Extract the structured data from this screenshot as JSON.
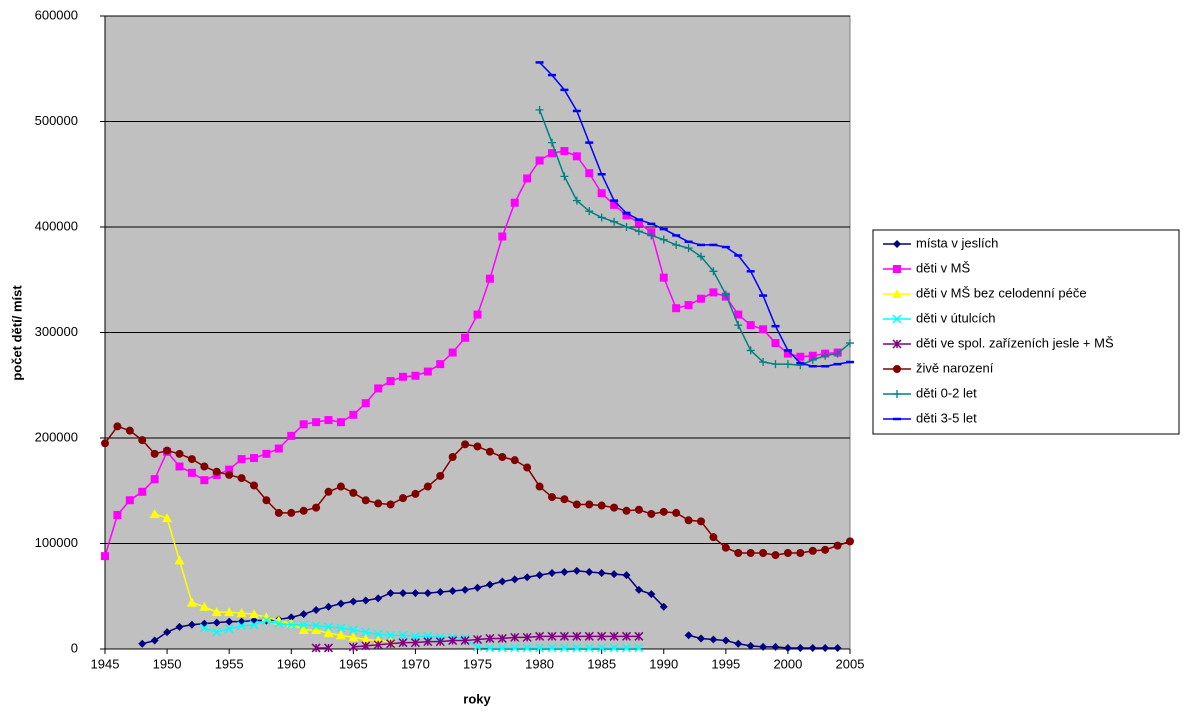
{
  "chart_data": {
    "type": "line",
    "x_label": "roky",
    "y_label": "počet dětí/ míst",
    "xlim": [
      1945,
      2005
    ],
    "ylim": [
      0,
      600000
    ],
    "xticks": [
      1945,
      1950,
      1955,
      1960,
      1965,
      1970,
      1975,
      1980,
      1985,
      1990,
      1995,
      2000,
      2005
    ],
    "yticks": [
      0,
      100000,
      200000,
      300000,
      400000,
      500000,
      600000
    ],
    "grid": true,
    "legend": "right",
    "background": "#c0c0c0",
    "x": [
      1945,
      1946,
      1947,
      1948,
      1949,
      1950,
      1951,
      1952,
      1953,
      1954,
      1955,
      1956,
      1957,
      1958,
      1959,
      1960,
      1961,
      1962,
      1963,
      1964,
      1965,
      1966,
      1967,
      1968,
      1969,
      1970,
      1971,
      1972,
      1973,
      1974,
      1975,
      1976,
      1977,
      1978,
      1979,
      1980,
      1981,
      1982,
      1983,
      1984,
      1985,
      1986,
      1987,
      1988,
      1989,
      1990,
      1991,
      1992,
      1993,
      1994,
      1995,
      1996,
      1997,
      1998,
      1999,
      2000,
      2001,
      2002,
      2003,
      2004,
      2005
    ],
    "series": [
      {
        "name": "místa v jeslích",
        "color": "#000080",
        "marker": "diamond",
        "values": [
          null,
          null,
          null,
          5000,
          8000,
          16000,
          21000,
          23000,
          24000,
          25000,
          26000,
          26000,
          27000,
          27000,
          28000,
          30000,
          33000,
          37000,
          40000,
          43000,
          45000,
          46000,
          48000,
          53000,
          53000,
          53000,
          53000,
          54000,
          55000,
          56000,
          58000,
          61000,
          64000,
          66000,
          68000,
          70000,
          72000,
          73000,
          74000,
          73000,
          72000,
          71000,
          70000,
          56000,
          52000,
          40000,
          null,
          13000,
          10000,
          9000,
          8000,
          5000,
          3000,
          2000,
          2000,
          1000,
          1000,
          1000,
          1000,
          1000,
          null
        ]
      },
      {
        "name": "děti v MŠ",
        "color": "#ff00ff",
        "marker": "square",
        "values": [
          88000,
          127000,
          141000,
          149000,
          161000,
          187000,
          173000,
          167000,
          160000,
          165000,
          170000,
          180000,
          181000,
          185000,
          190000,
          202000,
          213000,
          215000,
          217000,
          215000,
          222000,
          233000,
          247000,
          254000,
          258000,
          259000,
          263000,
          270000,
          281000,
          295000,
          317000,
          351000,
          391000,
          423000,
          446000,
          463000,
          470000,
          472000,
          467000,
          451000,
          432000,
          421000,
          411000,
          404000,
          395000,
          352000,
          323000,
          326000,
          332000,
          338000,
          334000,
          317000,
          307000,
          303000,
          290000,
          280000,
          277000,
          278000,
          280000,
          281000,
          null
        ]
      },
      {
        "name": "děti v MŠ bez celodenní péče",
        "color": "#ffff00",
        "marker": "triangle",
        "values": [
          null,
          null,
          null,
          null,
          128000,
          124000,
          84000,
          44000,
          40000,
          35000,
          35000,
          34000,
          33000,
          30000,
          27000,
          24000,
          18000,
          18000,
          15000,
          13000,
          11000,
          9000,
          8000,
          7000,
          null,
          null,
          null,
          null,
          null,
          null,
          null,
          null,
          null,
          null,
          null,
          null,
          null,
          null,
          null,
          null,
          null,
          null,
          null,
          null,
          null,
          null,
          null,
          null,
          null,
          null,
          null,
          null,
          null,
          null,
          null,
          null,
          null,
          null,
          null,
          null,
          null
        ]
      },
      {
        "name": "děti v útulcích",
        "color": "#00ffff",
        "marker": "x",
        "values": [
          null,
          null,
          null,
          null,
          null,
          null,
          null,
          null,
          20000,
          16000,
          19000,
          22000,
          23000,
          27000,
          24000,
          23000,
          23000,
          22000,
          21000,
          20000,
          18000,
          16000,
          14000,
          13000,
          13000,
          12000,
          12000,
          11000,
          11000,
          10000,
          2000,
          1000,
          1000,
          1000,
          1000,
          1000,
          1000,
          1000,
          1000,
          1000,
          1000,
          1000,
          1000,
          1000,
          null,
          null,
          null,
          null,
          null,
          null,
          null,
          null,
          null,
          null,
          null,
          null,
          null,
          null,
          null,
          null,
          null
        ]
      },
      {
        "name": "děti ve spol. zařízeních jesle + MŠ",
        "color": "#800080",
        "marker": "star",
        "values": [
          null,
          null,
          null,
          null,
          null,
          null,
          null,
          null,
          null,
          null,
          null,
          null,
          null,
          null,
          null,
          null,
          null,
          1000,
          1000,
          null,
          2000,
          3000,
          4000,
          5000,
          6000,
          6000,
          7000,
          7000,
          8000,
          8000,
          9000,
          10000,
          10000,
          11000,
          11000,
          12000,
          12000,
          12000,
          12000,
          12000,
          12000,
          12000,
          12000,
          12000,
          null,
          null,
          null,
          null,
          null,
          null,
          null,
          null,
          null,
          null,
          null,
          null,
          null,
          null,
          null,
          null,
          null
        ]
      },
      {
        "name": "živě narození",
        "color": "#800000",
        "marker": "circle",
        "values": [
          195000,
          211000,
          207000,
          198000,
          185000,
          188000,
          185000,
          180000,
          173000,
          168000,
          165000,
          162000,
          155000,
          141000,
          129000,
          129000,
          131000,
          134000,
          149000,
          154000,
          148000,
          141000,
          138000,
          137000,
          143000,
          147000,
          154000,
          164000,
          182000,
          194000,
          192000,
          187000,
          182000,
          179000,
          172000,
          154000,
          144000,
          142000,
          137000,
          137000,
          136000,
          134000,
          131000,
          132000,
          128000,
          130000,
          129000,
          122000,
          121000,
          106000,
          96000,
          91000,
          91000,
          91000,
          89000,
          91000,
          91000,
          93000,
          94000,
          98000,
          102000
        ]
      },
      {
        "name": "děti 0-2 let",
        "color": "#008080",
        "marker": "plus",
        "values": [
          null,
          null,
          null,
          null,
          null,
          null,
          null,
          null,
          null,
          null,
          null,
          null,
          null,
          null,
          null,
          null,
          null,
          null,
          null,
          null,
          null,
          null,
          null,
          null,
          null,
          null,
          null,
          null,
          null,
          null,
          null,
          null,
          null,
          null,
          null,
          511000,
          480000,
          448000,
          425000,
          415000,
          409000,
          405000,
          400000,
          396000,
          392000,
          388000,
          383000,
          380000,
          372000,
          358000,
          336000,
          307000,
          283000,
          272000,
          270000,
          270000,
          269000,
          274000,
          278000,
          280000,
          290000
        ]
      },
      {
        "name": "děti 3-5 let",
        "color": "#0000ff",
        "marker": "dash",
        "values": [
          null,
          null,
          null,
          null,
          null,
          null,
          null,
          null,
          null,
          null,
          null,
          null,
          null,
          null,
          null,
          null,
          null,
          null,
          null,
          null,
          null,
          null,
          null,
          null,
          null,
          null,
          null,
          null,
          null,
          null,
          null,
          null,
          null,
          null,
          null,
          556000,
          544000,
          530000,
          510000,
          480000,
          450000,
          425000,
          413000,
          407000,
          403000,
          398000,
          392000,
          386000,
          383000,
          383000,
          381000,
          373000,
          358000,
          335000,
          306000,
          283000,
          271000,
          268000,
          268000,
          270000,
          272000
        ]
      }
    ]
  }
}
